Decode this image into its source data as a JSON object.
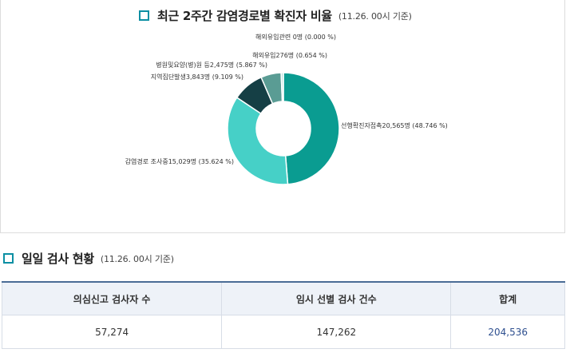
{
  "chart_section": {
    "title": "최근 2주간 감염경로별 확진자 비율",
    "subtitle": "(11.26. 00시 기준)"
  },
  "chart_data": {
    "type": "pie",
    "title": "최근 2주간 감염경로별 확진자 비율",
    "subtitle": "(11.26. 00시 기준)",
    "legend": "none",
    "slices": [
      {
        "label": "선행확진자접촉20,565명 (48.746 %)",
        "value": 48.746,
        "color": "#0a9c91"
      },
      {
        "label": "감염경로 조사중15,029명 (35.624 %)",
        "value": 35.624,
        "color": "#46d0c7"
      },
      {
        "label": "지역집단발생3,843명 (9.109 %)",
        "value": 9.109,
        "color": "#153f45"
      },
      {
        "label": "병원및요양(병)원 등2,475명 (5.867 %)",
        "value": 5.867,
        "color": "#5a9c94"
      },
      {
        "label": "해외유입276명 (0.654 %)",
        "value": 0.654,
        "color": "#b9e6e1"
      },
      {
        "label": "해외유입관련 0명 (0.000 %)",
        "value": 0.0,
        "color": "#9ab3b0"
      }
    ]
  },
  "stats_section": {
    "title": "일일 검사 현황",
    "subtitle": "(11.26. 00시 기준)",
    "headers": [
      "의심신고 검사자 수",
      "임시 선별 검사 건수",
      "합계"
    ],
    "values": [
      "57,274",
      "147,262",
      "204,536"
    ]
  }
}
